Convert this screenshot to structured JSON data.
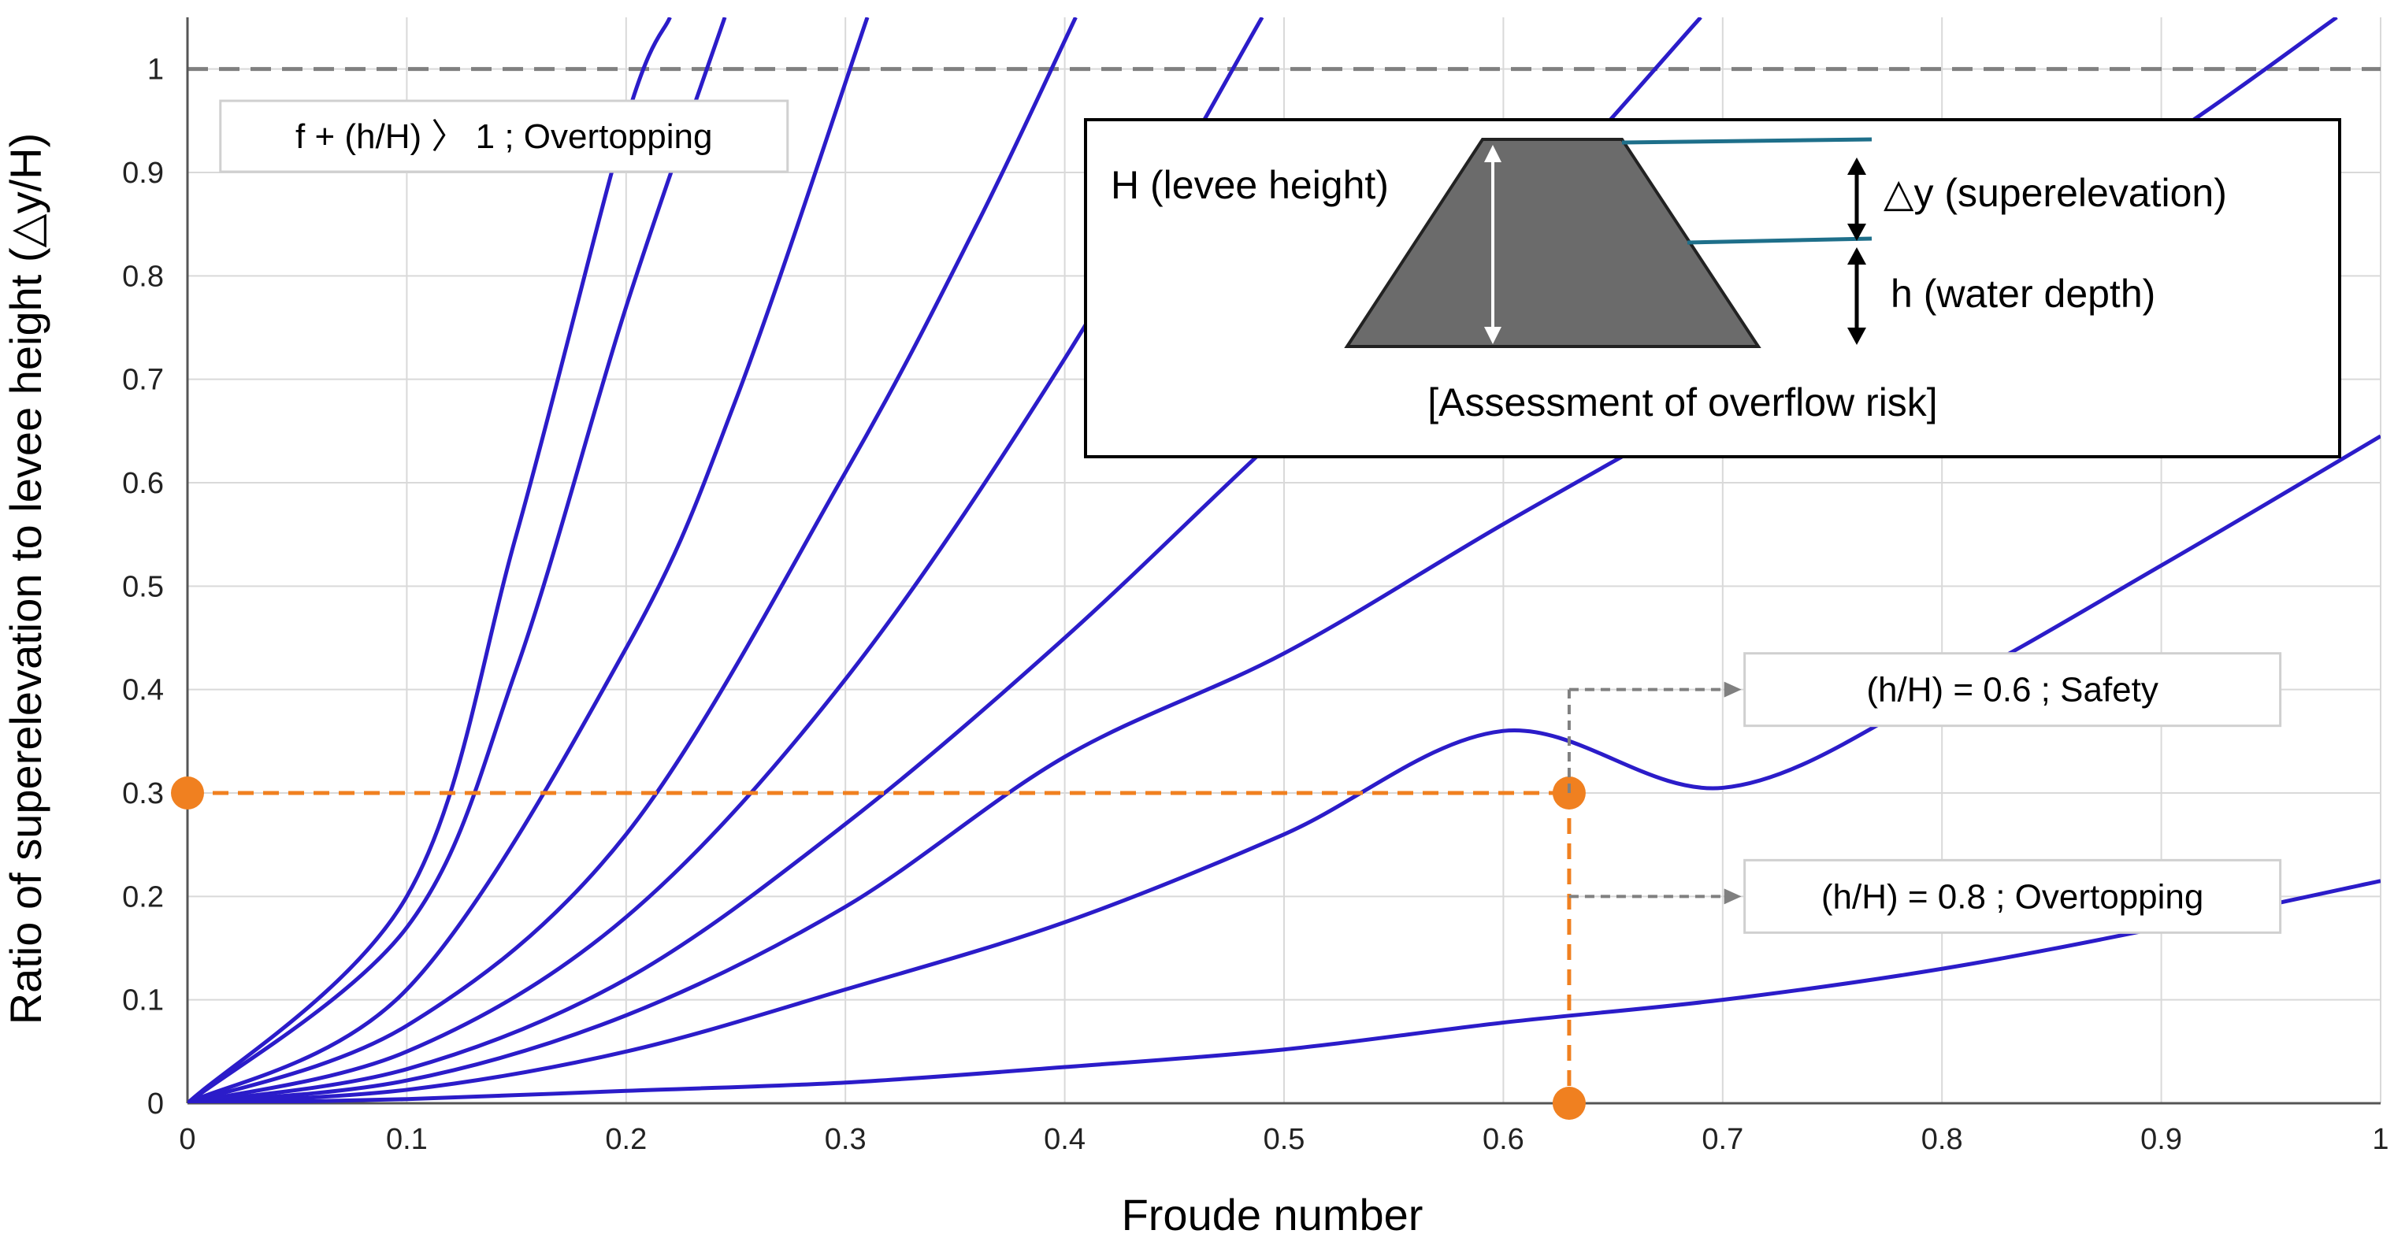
{
  "chart_data": {
    "type": "line",
    "xlabel": "Froude number",
    "ylabel": "Ratio of superelevation to levee height (△y/H)",
    "xlim": [
      0,
      1
    ],
    "ylim": [
      0,
      1.05
    ],
    "x_ticks": [
      "0",
      "0.1",
      "0.2",
      "0.3",
      "0.4",
      "0.5",
      "0.6",
      "0.7",
      "0.8",
      "0.9",
      "1"
    ],
    "y_ticks": [
      "0",
      "0.1",
      "0.2",
      "0.3",
      "0.4",
      "0.5",
      "0.6",
      "0.7",
      "0.8",
      "0.9",
      "1"
    ],
    "grid": true,
    "line_color": "#2b1cc9",
    "threshold_line": {
      "y": 1,
      "color": "#808080",
      "style": "dashed"
    },
    "series": [
      {
        "x": [
          0,
          0.1,
          0.15,
          0.2,
          0.22
        ],
        "values": [
          0,
          0.2,
          0.55,
          0.95,
          1.05
        ]
      },
      {
        "x": [
          0,
          0.1,
          0.15,
          0.2,
          0.245
        ],
        "values": [
          0,
          0.17,
          0.42,
          0.77,
          1.05
        ]
      },
      {
        "x": [
          0,
          0.1,
          0.2,
          0.25,
          0.31
        ],
        "values": [
          0,
          0.11,
          0.44,
          0.68,
          1.05
        ]
      },
      {
        "x": [
          0,
          0.1,
          0.2,
          0.3,
          0.36,
          0.405
        ],
        "values": [
          0,
          0.075,
          0.26,
          0.61,
          0.85,
          1.05
        ]
      },
      {
        "x": [
          0,
          0.1,
          0.2,
          0.3,
          0.4,
          0.49
        ],
        "values": [
          0,
          0.05,
          0.18,
          0.41,
          0.72,
          1.05
        ]
      },
      {
        "x": [
          0,
          0.1,
          0.2,
          0.3,
          0.4,
          0.5,
          0.6,
          0.69
        ],
        "values": [
          0,
          0.033,
          0.12,
          0.27,
          0.45,
          0.65,
          0.84,
          1.05
        ]
      },
      {
        "x": [
          0,
          0.1,
          0.2,
          0.3,
          0.4,
          0.5,
          0.6,
          0.7,
          0.8,
          0.9,
          0.98
        ],
        "values": [
          0,
          0.022,
          0.085,
          0.19,
          0.335,
          0.435,
          0.56,
          0.68,
          0.8,
          0.93,
          1.05
        ]
      },
      {
        "x": [
          0,
          0.1,
          0.2,
          0.3,
          0.4,
          0.5,
          0.6,
          0.7,
          0.8,
          0.9,
          1.0
        ],
        "values": [
          0,
          0.013,
          0.05,
          0.11,
          0.175,
          0.26,
          0.36,
          0.305,
          0.4,
          0.52,
          0.645
        ]
      },
      {
        "x": [
          0,
          0.1,
          0.2,
          0.3,
          0.4,
          0.5,
          0.6,
          0.7,
          0.8,
          0.9,
          1.0
        ],
        "values": [
          0,
          0.004,
          0.012,
          0.02,
          0.035,
          0.052,
          0.078,
          0.1,
          0.13,
          0.17,
          0.215
        ]
      }
    ],
    "guide_lines": [
      {
        "x": [
          0,
          0.63
        ],
        "y": [
          0.3,
          0.3
        ],
        "color": "#f08020",
        "style": "dashed"
      },
      {
        "x": [
          0.63,
          0.63
        ],
        "y": [
          0.3,
          0
        ],
        "color": "#f08020",
        "style": "dashed"
      }
    ],
    "guide_points": [
      {
        "x": 0,
        "y": 0.3,
        "color": "#f08020"
      },
      {
        "x": 0.63,
        "y": 0.3,
        "color": "#f08020"
      },
      {
        "x": 0.63,
        "y": 0,
        "color": "#f08020"
      }
    ],
    "annotations": [
      {
        "text": "f + (h/H) 〉 1 ; Overtopping",
        "x": 0.015,
        "y": 0.935
      },
      {
        "text": "(h/H) = 0.6 ; Safety",
        "x": 0.71,
        "y": 0.4
      },
      {
        "text": "(h/H) = 0.8 ; Overtopping",
        "x": 0.71,
        "y": 0.2
      }
    ],
    "inset": {
      "levee_label": "H (levee height)",
      "superelevation_label": "△y (superelevation)",
      "depth_label": "h (water depth)",
      "caption": "[Assessment of overflow risk]"
    }
  }
}
